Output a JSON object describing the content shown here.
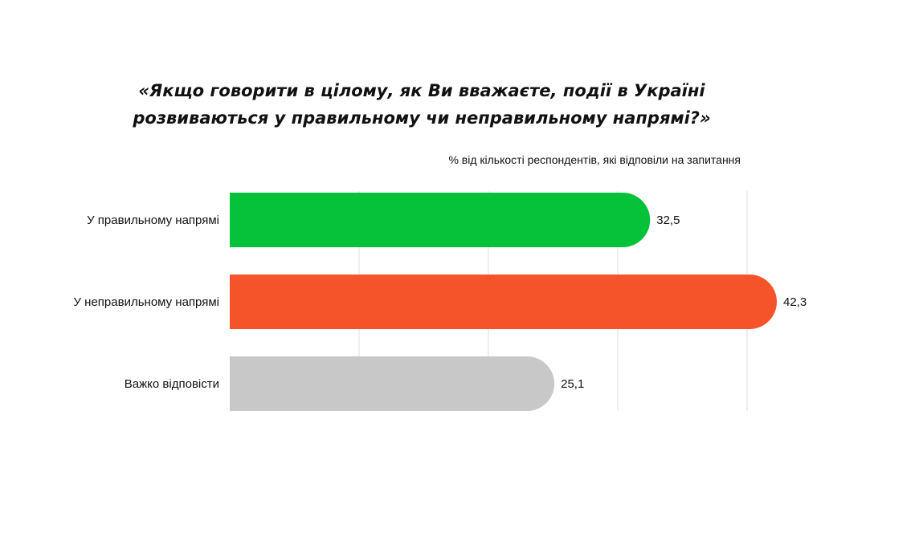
{
  "chart_data": {
    "type": "bar",
    "orientation": "horizontal",
    "title": "«Якщо говорити в цілому, як Ви вважаєте, події в Україні розвиваються у правильному чи неправильному напрямі?»",
    "subtitle": "% від кількості респондентів, які відповіли на запитання",
    "categories": [
      "У правильному напрямі",
      "У неправильному напрямі",
      "Важко відповісти"
    ],
    "values": [
      32.5,
      42.3,
      25.1
    ],
    "value_labels": [
      "32,5",
      "42,3",
      "25,1"
    ],
    "colors": [
      "#06C13A",
      "#F5532A",
      "#C8C8C8"
    ],
    "xlim": [
      0,
      40
    ],
    "grid": true,
    "legend": "none"
  }
}
